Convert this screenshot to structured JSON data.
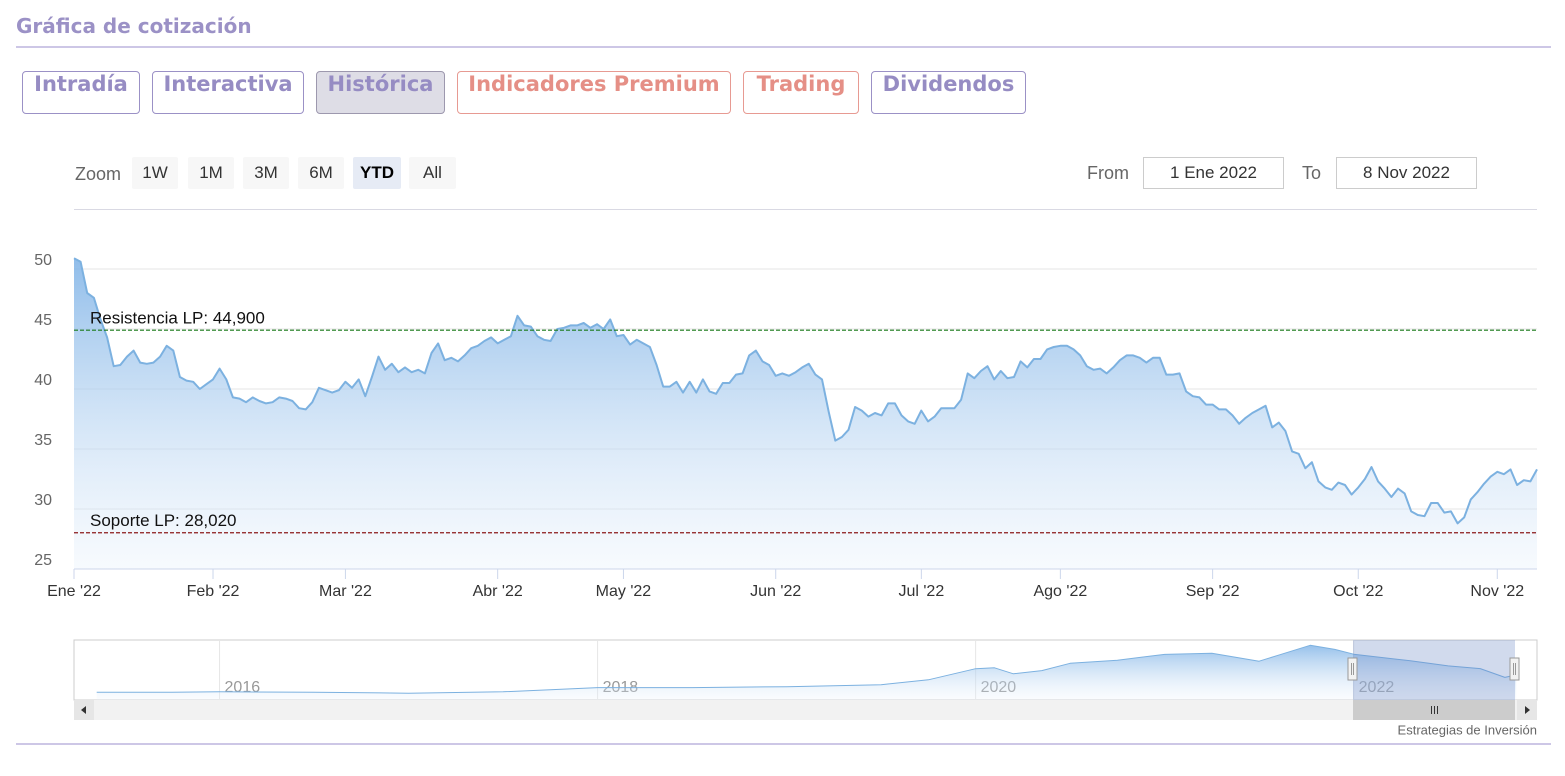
{
  "header": {
    "title": "Gráfica de cotización"
  },
  "tabs": [
    "Intradía",
    "Interactiva",
    "Histórica",
    "Indicadores Premium",
    "Trading",
    "Dividendos"
  ],
  "zoom": {
    "label": "Zoom",
    "buttons": [
      "1W",
      "1M",
      "3M",
      "6M",
      "YTD",
      "All"
    ]
  },
  "range": {
    "from_label": "From",
    "from": "1 Ene 2022",
    "to_label": "To",
    "to": "8 Nov 2022"
  },
  "chart_data": [
    {
      "type": "area",
      "color": "#7cb1e0",
      "grid": true,
      "x": [
        0,
        1,
        2,
        3,
        4,
        5,
        6,
        7,
        8,
        9,
        10,
        11,
        12,
        13,
        14,
        15,
        16,
        17,
        18,
        19,
        20,
        21,
        22,
        23,
        24,
        25,
        26,
        27,
        28,
        29,
        30,
        31,
        32,
        33,
        34,
        35,
        36,
        37,
        38,
        39,
        40,
        41,
        42,
        43,
        44,
        45,
        46,
        47,
        48,
        49,
        50,
        51,
        52,
        53,
        54,
        55,
        56,
        57,
        58,
        59,
        60,
        61,
        62,
        63,
        64,
        65,
        66,
        67,
        68,
        69,
        70,
        71,
        72,
        73,
        74,
        75,
        76,
        77,
        78,
        79,
        80,
        81,
        82,
        83,
        84,
        85,
        86,
        87,
        88,
        89,
        90,
        91,
        92,
        93,
        94,
        95,
        96,
        97,
        98,
        99,
        100,
        101,
        102,
        103,
        104,
        105,
        106,
        107,
        108,
        109,
        110,
        111,
        112,
        113,
        114,
        115,
        116,
        117,
        118,
        119,
        120,
        121,
        122,
        123,
        124,
        125,
        126,
        127,
        128,
        129,
        130,
        131,
        132,
        133,
        134,
        135,
        136,
        137,
        138,
        139,
        140,
        141,
        142,
        143,
        144,
        145,
        146,
        147,
        148,
        149,
        150,
        151,
        152,
        153,
        154,
        155,
        156,
        157,
        158,
        159,
        160,
        161,
        162,
        163,
        164,
        165,
        166,
        167,
        168,
        169,
        170,
        171,
        172,
        173,
        174,
        175,
        176,
        177,
        178,
        179,
        180,
        181,
        182,
        183,
        184,
        185,
        186,
        187,
        188,
        189,
        190,
        191,
        192,
        193,
        194,
        195,
        196,
        197,
        198,
        199,
        200,
        201,
        202,
        203,
        204,
        205,
        206,
        207,
        208,
        209,
        210,
        211,
        212,
        213,
        214,
        215,
        216,
        217,
        218,
        219,
        220,
        221
      ],
      "values": [
        50.9,
        50.6,
        48.0,
        47.6,
        45.8,
        44.3,
        41.9,
        42.0,
        42.7,
        43.2,
        42.2,
        42.1,
        42.2,
        42.7,
        43.6,
        43.2,
        41.0,
        40.7,
        40.6,
        40.0,
        40.4,
        40.8,
        41.7,
        40.8,
        39.3,
        39.2,
        38.9,
        39.3,
        39.0,
        38.8,
        38.9,
        39.3,
        39.2,
        39.0,
        38.4,
        38.3,
        38.9,
        40.1,
        39.9,
        39.7,
        39.9,
        40.6,
        40.1,
        40.8,
        39.4,
        41.0,
        42.7,
        41.6,
        42.1,
        41.4,
        41.8,
        41.4,
        41.6,
        41.3,
        43.0,
        43.8,
        42.4,
        42.6,
        42.3,
        42.8,
        43.4,
        43.6,
        44.0,
        44.3,
        43.8,
        44.1,
        44.4,
        46.1,
        45.3,
        45.2,
        44.4,
        44.1,
        44.0,
        45.0,
        45.1,
        45.3,
        45.3,
        45.5,
        45.1,
        45.4,
        45.0,
        45.8,
        44.4,
        44.5,
        43.7,
        44.1,
        43.8,
        43.5,
        42.0,
        40.2,
        40.2,
        40.6,
        39.7,
        40.6,
        39.7,
        40.8,
        39.8,
        39.6,
        40.5,
        40.5,
        41.2,
        41.3,
        42.8,
        43.2,
        42.3,
        42.0,
        41.1,
        41.3,
        41.1,
        41.4,
        41.8,
        42.1,
        41.2,
        40.8,
        38.1,
        35.7,
        36.0,
        36.6,
        38.5,
        38.2,
        37.7,
        38.0,
        37.8,
        38.8,
        38.8,
        37.8,
        37.3,
        37.1,
        38.2,
        37.3,
        37.7,
        38.4,
        38.4,
        38.4,
        39.1,
        41.3,
        40.9,
        41.5,
        41.9,
        40.8,
        41.5,
        40.9,
        41.0,
        42.3,
        41.8,
        42.5,
        42.5,
        43.3,
        43.5,
        43.6,
        43.6,
        43.3,
        42.8,
        41.9,
        41.6,
        41.7,
        41.3,
        41.8,
        42.4,
        42.8,
        42.8,
        42.6,
        42.2,
        42.6,
        42.6,
        41.2,
        41.2,
        41.3,
        39.8,
        39.4,
        39.3,
        38.7,
        38.7,
        38.3,
        38.3,
        37.8,
        37.1,
        37.6,
        38.0,
        38.3,
        38.6,
        36.8,
        37.2,
        36.5,
        34.8,
        34.6,
        33.4,
        33.9,
        32.3,
        31.8,
        31.6,
        32.2,
        32.0,
        31.2,
        31.8,
        32.5,
        33.5,
        32.3,
        31.7,
        31.0,
        31.7,
        31.3,
        29.8,
        29.5,
        29.4,
        30.5,
        30.5,
        29.7,
        29.8,
        28.8,
        29.3,
        30.8,
        31.4,
        32.1,
        32.7,
        33.1,
        32.9,
        33.3,
        32.0,
        32.4,
        32.3,
        33.3
      ],
      "xlim": [
        0,
        221
      ],
      "xticks": [
        {
          "value": 0,
          "label": "Ene '22"
        },
        {
          "value": 21,
          "label": "Feb '22"
        },
        {
          "value": 41,
          "label": "Mar '22"
        },
        {
          "value": 64,
          "label": "Abr '22"
        },
        {
          "value": 83,
          "label": "May '22"
        },
        {
          "value": 106,
          "label": "Jun '22"
        },
        {
          "value": 128,
          "label": "Jul '22"
        },
        {
          "value": 149,
          "label": "Ago '22"
        },
        {
          "value": 172,
          "label": "Sep '22"
        },
        {
          "value": 194,
          "label": "Oct '22"
        },
        {
          "value": 215,
          "label": "Nov '22"
        }
      ],
      "ylim": [
        25,
        55
      ],
      "yticks": [
        25,
        30,
        35,
        40,
        45,
        50
      ],
      "annotations": [
        {
          "label": "Resistencia LP: 44,900",
          "value": 44.9,
          "color": "#1a7a1a"
        },
        {
          "label": "Soporte LP: 28,020",
          "value": 28.02,
          "color": "#8b1a1a"
        }
      ]
    },
    {
      "type": "area",
      "color": "#7cb1e0",
      "grid": true,
      "x": [
        2015.35,
        2015.75,
        2016.0,
        2016.5,
        2017.0,
        2017.5,
        2017.75,
        2018.0,
        2018.5,
        2019.0,
        2019.5,
        2019.75,
        2020.0,
        2020.1,
        2020.2,
        2020.35,
        2020.5,
        2020.75,
        2021.0,
        2021.25,
        2021.5,
        2021.6,
        2021.77,
        2021.9,
        2022.0,
        2022.3,
        2022.5,
        2022.67,
        2022.8,
        2022.86
      ],
      "values": [
        18.6,
        18.6,
        19.0,
        18.6,
        17.8,
        19.0,
        20.7,
        22.5,
        22.5,
        23.3,
        25.0,
        29.2,
        38.6,
        39.4,
        34.3,
        37.0,
        43.2,
        45.8,
        50.8,
        51.7,
        45.0,
        50.0,
        58.5,
        55.0,
        50.9,
        45.3,
        41.0,
        38.7,
        31.2,
        33.3
      ],
      "xlim": [
        2015.23,
        2022.97
      ],
      "xticks": [
        2016,
        2018,
        2020,
        2022
      ],
      "ylim": [
        12,
        63
      ]
    }
  ],
  "credit": "Estrategias de Inversión"
}
